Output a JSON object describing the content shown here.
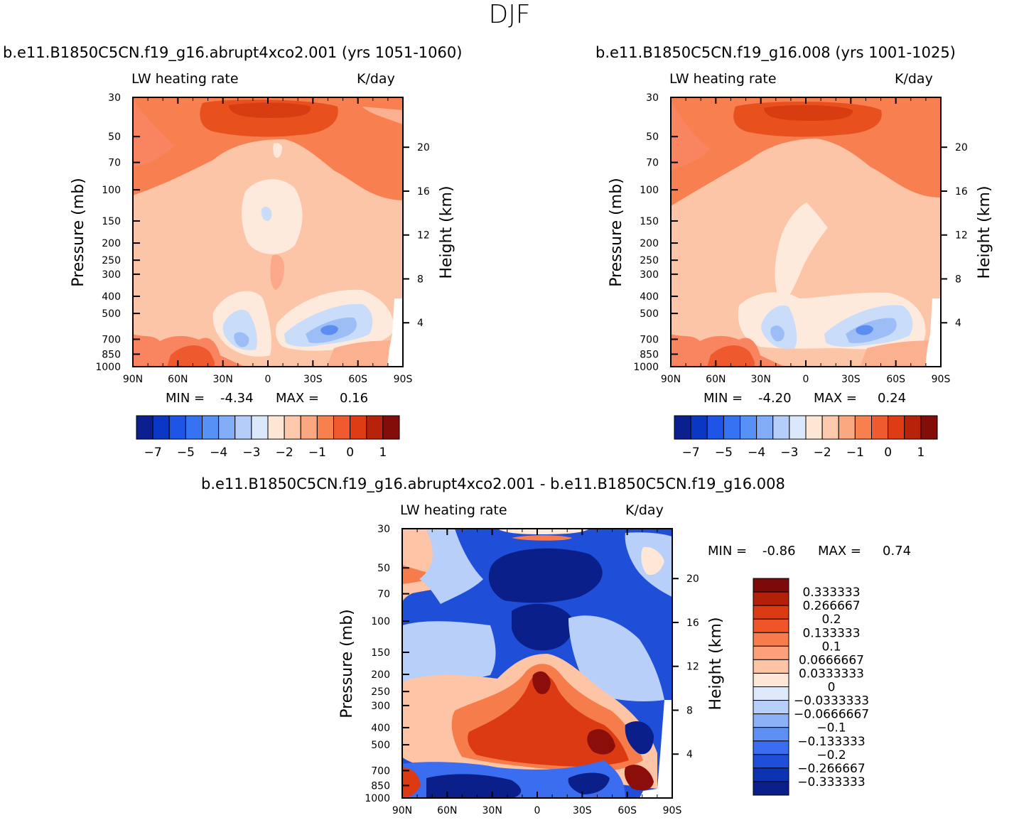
{
  "page": {
    "title": "DJF"
  },
  "chart_data": [
    {
      "type": "heatmap",
      "title": "b.e11.B1850C5CN.f19_g16.abrupt4xco2.001 (yrs 1051-1060)",
      "left_subtitle": "LW heating rate",
      "right_subtitle": "K/day",
      "ylabel": "Pressure (mb)",
      "ylabel_right": "Height (km)",
      "x_ticks": [
        "90N",
        "60N",
        "30N",
        "0",
        "30S",
        "60S",
        "90S"
      ],
      "y_ticks": [
        "30",
        "50",
        "70",
        "100",
        "150",
        "200",
        "250",
        "300",
        "400",
        "500",
        "700",
        "850",
        "1000"
      ],
      "y_ticks_right": [
        "20",
        "16",
        "12",
        "8",
        "4"
      ],
      "stats": {
        "min_label": "MIN =",
        "min": "-4.34",
        "max_label": "MAX =",
        "max": "0.16"
      },
      "colorbar_labels": [
        "-7",
        "-5",
        "-4",
        "-3",
        "-2",
        "-1",
        "0",
        "1"
      ],
      "colorbar_colors": [
        "#0b1f8f",
        "#0a37c4",
        "#1f55e6",
        "#3573f3",
        "#5891f5",
        "#83acf7",
        "#b4cdf9",
        "#dbe8fb",
        "#fde7d4",
        "#fcc9ac",
        "#fba77f",
        "#f8804f",
        "#ef5a2e",
        "#de3c15",
        "#b7230a",
        "#830e09"
      ],
      "levels": {
        "base": "#fcc5a8",
        "lower": "#fbb08f",
        "low_left": "#f98560",
        "upper": "#f88050",
        "core": "#e8501e",
        "pale": "#feeadc",
        "blue1": "#c9dcfa",
        "blue2": "#9dbdf6",
        "blue3": "#5c8ef2"
      }
    },
    {
      "type": "heatmap",
      "title": "b.e11.B1850C5CN.f19_g16.008 (yrs 1001-1025)",
      "left_subtitle": "LW heating rate",
      "right_subtitle": "K/day",
      "ylabel": "Pressure (mb)",
      "ylabel_right": "Height (km)",
      "x_ticks": [
        "90N",
        "60N",
        "30N",
        "0",
        "30S",
        "60S",
        "90S"
      ],
      "y_ticks": [
        "30",
        "50",
        "70",
        "100",
        "150",
        "200",
        "250",
        "300",
        "400",
        "500",
        "700",
        "850",
        "1000"
      ],
      "y_ticks_right": [
        "20",
        "16",
        "12",
        "8",
        "4"
      ],
      "stats": {
        "min_label": "MIN =",
        "min": "-4.20",
        "max_label": "MAX =",
        "max": "0.24"
      },
      "colorbar_labels": [
        "-7",
        "-5",
        "-4",
        "-3",
        "-2",
        "-1",
        "0",
        "1"
      ],
      "colorbar_colors": [
        "#0b1f8f",
        "#0a37c4",
        "#1f55e6",
        "#3573f3",
        "#5891f5",
        "#83acf7",
        "#b4cdf9",
        "#dbe8fb",
        "#fde7d4",
        "#fcc9ac",
        "#fba77f",
        "#f8804f",
        "#ef5a2e",
        "#de3c15",
        "#b7230a",
        "#830e09"
      ],
      "levels": {
        "base": "#fcc5a8",
        "lower": "#fbb08f",
        "low_left": "#f98560",
        "upper": "#f88050",
        "core": "#e8501e",
        "pale": "#feeadc",
        "blue1": "#c9dcfa",
        "blue2": "#9dbdf6",
        "blue3": "#5c8ef2"
      }
    },
    {
      "type": "heatmap",
      "title": "b.e11.B1850C5CN.f19_g16.abrupt4xco2.001 - b.e11.B1850C5CN.f19_g16.008",
      "left_subtitle": "LW heating rate",
      "right_subtitle": "K/day",
      "ylabel": "Pressure (mb)",
      "ylabel_right": "Height (km)",
      "x_ticks": [
        "90N",
        "60N",
        "30N",
        "0",
        "30S",
        "60S",
        "90S"
      ],
      "y_ticks": [
        "30",
        "50",
        "70",
        "100",
        "150",
        "200",
        "250",
        "300",
        "400",
        "500",
        "700",
        "850",
        "1000"
      ],
      "y_ticks_right": [
        "20",
        "16",
        "12",
        "8",
        "4"
      ],
      "stats": {
        "min_label": "MIN =",
        "min": "-0.86",
        "max_label": "MAX =",
        "max": "0.74"
      },
      "colorbar_labels": [
        "0.333333",
        "0.266667",
        "0.2",
        "0.133333",
        "0.1",
        "0.0666667",
        "0.0333333",
        "0",
        "-0.0333333",
        "-0.0666667",
        "-0.1",
        "-0.133333",
        "-0.2",
        "-0.266667",
        "-0.333333"
      ],
      "colorbar_colors": [
        "#7c0a0a",
        "#b3200a",
        "#dc3a12",
        "#ee5528",
        "#f67c4c",
        "#fba07a",
        "#fdc4a6",
        "#fee7d6",
        "#dde9fb",
        "#b7cff9",
        "#8cb1f6",
        "#5e8ff2",
        "#3a6df0",
        "#1f4fd9",
        "#0c33b0",
        "#0a1f8a"
      ],
      "levels": {
        "deep_blue": "#0a1f8a",
        "blue": "#1f4fd9",
        "mid_blue": "#3a6df0",
        "light_blue": "#b7cff9",
        "pale": "#fee7d6",
        "peach": "#fdc4a6",
        "orange": "#f67c4c",
        "red": "#dc3a12",
        "dark_red": "#8c0e0a"
      }
    }
  ]
}
